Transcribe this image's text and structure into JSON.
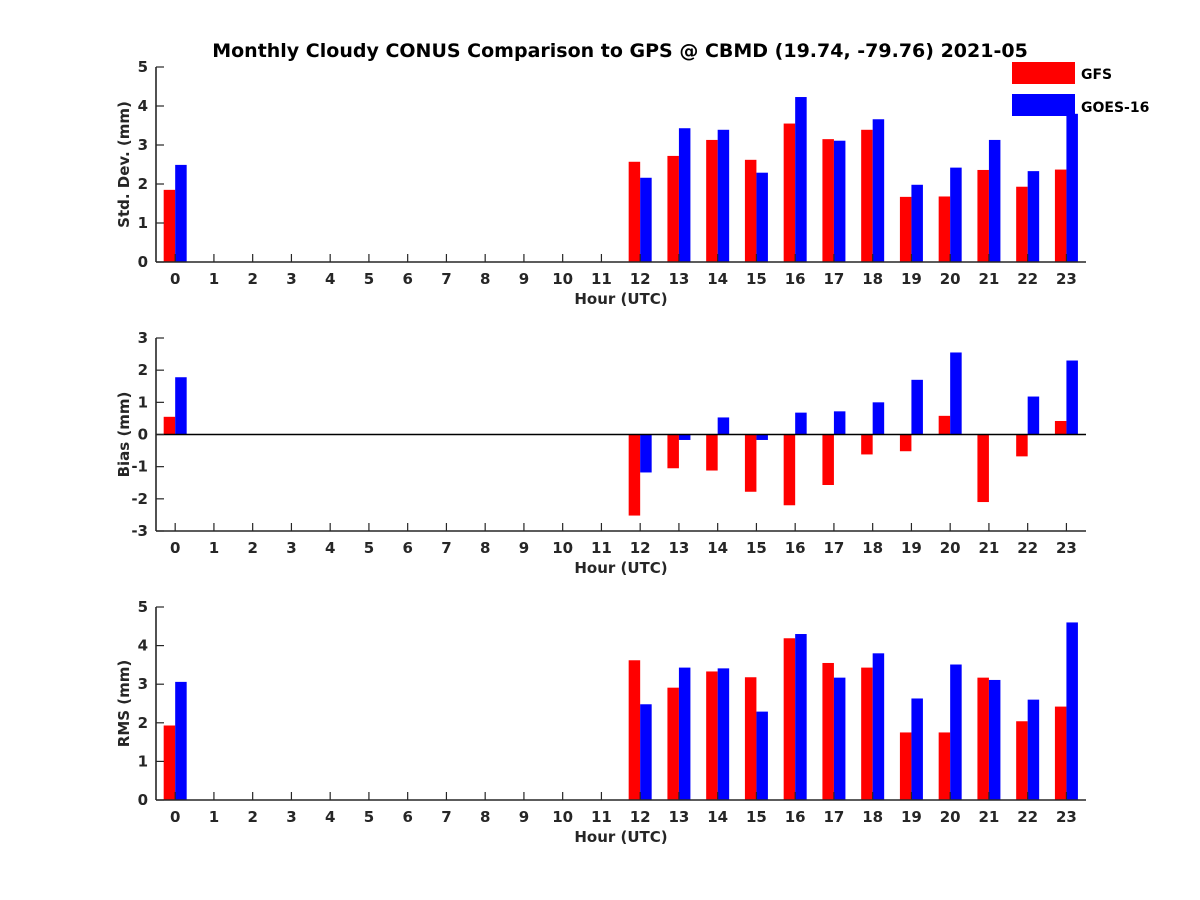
{
  "chart_data": {
    "title": "Monthly Cloudy CONUS Comparison to GPS @ CBMD (19.74, -79.76) 2021-05",
    "legend": {
      "placement": "top-right",
      "entries": [
        {
          "name": "GFS",
          "color": "#ff0000"
        },
        {
          "name": "GOES-16",
          "color": "#0000ff"
        }
      ]
    },
    "panels": [
      {
        "type": "bar",
        "ylabel": "Std. Dev. (mm)",
        "xlabel": "Hour (UTC)",
        "ylim": [
          0,
          5
        ],
        "yticks": [
          0,
          1,
          2,
          3,
          4,
          5
        ],
        "categories": [
          "0",
          "1",
          "2",
          "3",
          "4",
          "5",
          "6",
          "7",
          "8",
          "9",
          "10",
          "11",
          "12",
          "13",
          "14",
          "15",
          "16",
          "17",
          "18",
          "19",
          "20",
          "21",
          "22",
          "23"
        ],
        "series": [
          {
            "name": "GFS",
            "color": "#ff0000",
            "values": [
              1.85,
              null,
              null,
              null,
              null,
              null,
              null,
              null,
              null,
              null,
              null,
              null,
              2.57,
              2.72,
              3.13,
              2.62,
              3.55,
              3.15,
              3.39,
              1.67,
              1.68,
              2.36,
              1.93,
              2.37
            ]
          },
          {
            "name": "GOES-16",
            "color": "#0000ff",
            "values": [
              2.49,
              null,
              null,
              null,
              null,
              null,
              null,
              null,
              null,
              null,
              null,
              null,
              2.16,
              3.43,
              3.39,
              2.29,
              4.23,
              3.11,
              3.66,
              1.98,
              2.42,
              3.13,
              2.33,
              3.8
            ]
          }
        ]
      },
      {
        "type": "bar",
        "ylabel": "Bias (mm)",
        "xlabel": "Hour (UTC)",
        "ylim": [
          -3,
          3
        ],
        "yticks": [
          -3,
          -2,
          -1,
          0,
          1,
          2,
          3
        ],
        "zero_line": true,
        "categories": [
          "0",
          "1",
          "2",
          "3",
          "4",
          "5",
          "6",
          "7",
          "8",
          "9",
          "10",
          "11",
          "12",
          "13",
          "14",
          "15",
          "16",
          "17",
          "18",
          "19",
          "20",
          "21",
          "22",
          "23"
        ],
        "series": [
          {
            "name": "GFS",
            "color": "#ff0000",
            "values": [
              0.55,
              null,
              null,
              null,
              null,
              null,
              null,
              null,
              null,
              null,
              null,
              null,
              -2.52,
              -1.05,
              -1.12,
              -1.78,
              -2.2,
              -1.57,
              -0.62,
              -0.52,
              0.58,
              -2.1,
              -0.68,
              0.42
            ]
          },
          {
            "name": "GOES-16",
            "color": "#0000ff",
            "values": [
              1.78,
              null,
              null,
              null,
              null,
              null,
              null,
              null,
              null,
              null,
              null,
              null,
              -1.18,
              -0.17,
              0.53,
              -0.17,
              0.68,
              0.72,
              1.0,
              1.7,
              2.55,
              null,
              1.18,
              2.3
            ]
          }
        ]
      },
      {
        "type": "bar",
        "ylabel": "RMS (mm)",
        "xlabel": "Hour (UTC)",
        "ylim": [
          0,
          5
        ],
        "yticks": [
          0,
          1,
          2,
          3,
          4,
          5
        ],
        "categories": [
          "0",
          "1",
          "2",
          "3",
          "4",
          "5",
          "6",
          "7",
          "8",
          "9",
          "10",
          "11",
          "12",
          "13",
          "14",
          "15",
          "16",
          "17",
          "18",
          "19",
          "20",
          "21",
          "22",
          "23"
        ],
        "series": [
          {
            "name": "GFS",
            "color": "#ff0000",
            "values": [
              1.93,
              null,
              null,
              null,
              null,
              null,
              null,
              null,
              null,
              null,
              null,
              null,
              3.62,
              2.91,
              3.33,
              3.18,
              4.19,
              3.55,
              3.43,
              1.75,
              1.75,
              3.17,
              2.04,
              2.42
            ]
          },
          {
            "name": "GOES-16",
            "color": "#0000ff",
            "values": [
              3.06,
              null,
              null,
              null,
              null,
              null,
              null,
              null,
              null,
              null,
              null,
              null,
              2.48,
              3.43,
              3.41,
              2.29,
              4.3,
              3.17,
              3.8,
              2.63,
              3.51,
              3.11,
              2.6,
              4.6
            ]
          }
        ]
      }
    ]
  }
}
